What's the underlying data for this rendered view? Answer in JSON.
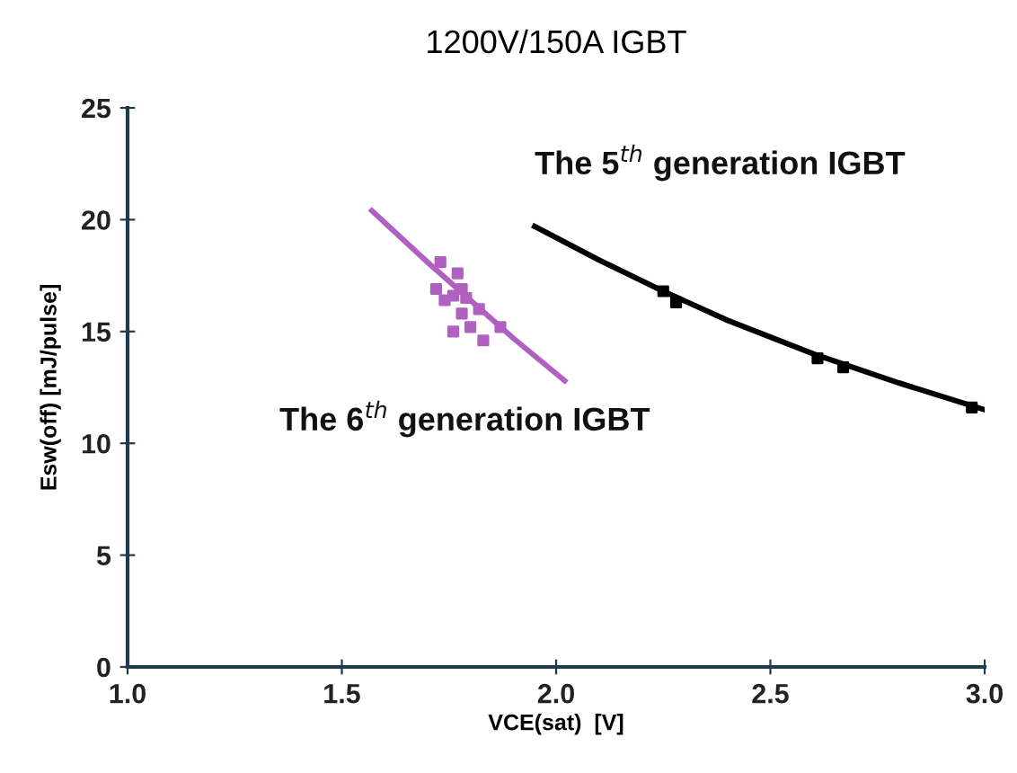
{
  "chart_data": {
    "type": "line",
    "title": "1200V/150A IGBT",
    "xlabel": "VCE(sat)  [V]",
    "ylabel": "Esw(off) [mJ/pulse]",
    "xlim": [
      1.0,
      3.0
    ],
    "xticks": [
      {
        "value": 1.0,
        "label": "1.0"
      },
      {
        "value": 1.5,
        "label": "1.5"
      },
      {
        "value": 2.0,
        "label": "2.0"
      },
      {
        "value": 2.5,
        "label": "2.5"
      },
      {
        "value": 3.0,
        "label": "3.0"
      }
    ],
    "ylim": [
      0,
      25
    ],
    "yticks": [
      0,
      5,
      10,
      15,
      20,
      25
    ],
    "grid": false,
    "legend": false,
    "series": [
      {
        "name": "The 5$^{th}$ generation IGBT",
        "color": "#000000",
        "marker": "none",
        "x": [
          1.95,
          2.1,
          2.25,
          2.4,
          2.6,
          2.8,
          3.0
        ],
        "values": [
          19.7,
          18.2,
          16.8,
          15.5,
          14.0,
          12.7,
          11.5
        ]
      },
      {
        "type": "scatter",
        "color": "#000000",
        "marker": "square",
        "x": [
          2.25,
          2.28,
          2.61,
          2.67,
          2.97
        ],
        "values": [
          16.8,
          16.3,
          13.8,
          13.4,
          11.6
        ]
      },
      {
        "name": "The 6$^{th}$ generation IGBT",
        "color": "#b060c0",
        "marker": "none",
        "x": [
          1.57,
          1.7,
          1.8,
          1.9,
          2.02
        ],
        "values": [
          20.4,
          18.1,
          16.4,
          14.7,
          12.8
        ]
      },
      {
        "type": "scatter",
        "color": "#b060c0",
        "marker": "square",
        "x": [
          1.73,
          1.77,
          1.72,
          1.76,
          1.78,
          1.79,
          1.74,
          1.78,
          1.82,
          1.76,
          1.8,
          1.83,
          1.87
        ],
        "values": [
          18.1,
          17.6,
          16.9,
          16.6,
          16.9,
          16.5,
          16.4,
          15.8,
          16.0,
          15.0,
          15.2,
          14.6,
          15.2
        ]
      }
    ]
  }
}
